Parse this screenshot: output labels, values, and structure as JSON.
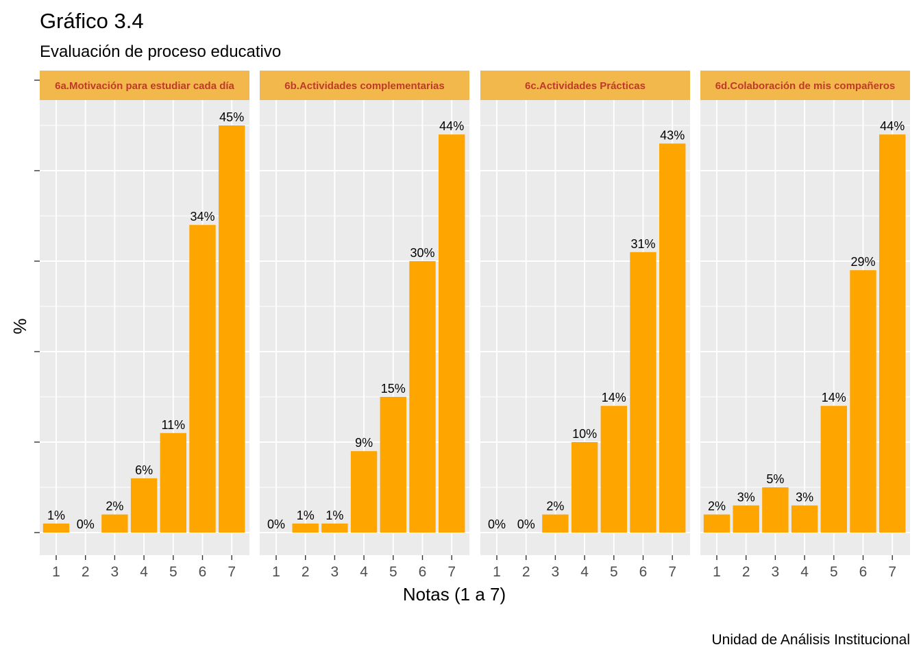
{
  "title": "Gráfico 3.4",
  "subtitle": "Evaluación de proceso educativo",
  "caption": "Unidad de Análisis Institucional",
  "colors": {
    "bar": "#FFA500",
    "panel_bg": "#EBEBEB",
    "strip_bg": "#F2B84B",
    "strip_text": "#C0392B",
    "grid": "#FFFFFF"
  },
  "chart_data": {
    "type": "bar",
    "xlabel": "Notas (1 a 7)",
    "ylabel": "%",
    "ylim": [
      0,
      0.5
    ],
    "categories": [
      "1",
      "2",
      "3",
      "4",
      "5",
      "6",
      "7"
    ],
    "grid": true,
    "facets": [
      {
        "name": "6a.Motivación para estudiar cada día",
        "values": [
          0.01,
          0.0,
          0.02,
          0.06,
          0.11,
          0.34,
          0.45
        ],
        "labels": [
          "1%",
          "0%",
          "2%",
          "6%",
          "11%",
          "34%",
          "45%"
        ]
      },
      {
        "name": "6b.Actividades complementarias",
        "values": [
          0.0,
          0.01,
          0.01,
          0.09,
          0.15,
          0.3,
          0.44
        ],
        "labels": [
          "0%",
          "1%",
          "1%",
          "9%",
          "15%",
          "30%",
          "44%"
        ]
      },
      {
        "name": "6c.Actividades Prácticas",
        "values": [
          0.0,
          0.0,
          0.02,
          0.1,
          0.14,
          0.31,
          0.43
        ],
        "labels": [
          "0%",
          "0%",
          "2%",
          "10%",
          "14%",
          "31%",
          "43%"
        ]
      },
      {
        "name": "6d.Colaboración de mis compañeros",
        "values": [
          0.02,
          0.03,
          0.05,
          0.03,
          0.14,
          0.29,
          0.44
        ],
        "labels": [
          "2%",
          "3%",
          "5%",
          "3%",
          "14%",
          "29%",
          "44%"
        ]
      }
    ]
  }
}
